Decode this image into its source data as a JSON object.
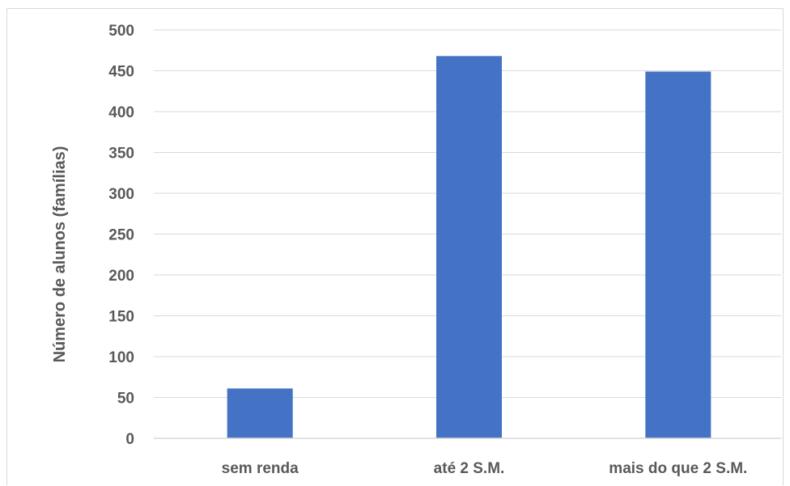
{
  "chart_data": {
    "type": "bar",
    "categories": [
      "sem renda",
      "até 2 S.M.",
      "mais do que 2 S.M."
    ],
    "values": [
      61,
      468,
      449
    ],
    "title": "",
    "xlabel": "",
    "ylabel": "Número de alunos (famílias)",
    "ylim": [
      0,
      500
    ],
    "yticks": [
      "0",
      "50",
      "100",
      "150",
      "200",
      "250",
      "300",
      "350",
      "400",
      "450",
      "500"
    ],
    "grid": true,
    "legend": "none",
    "bar_color": "#4472C4",
    "grid_color": "#d9d9d9",
    "text_color": "#595959"
  }
}
